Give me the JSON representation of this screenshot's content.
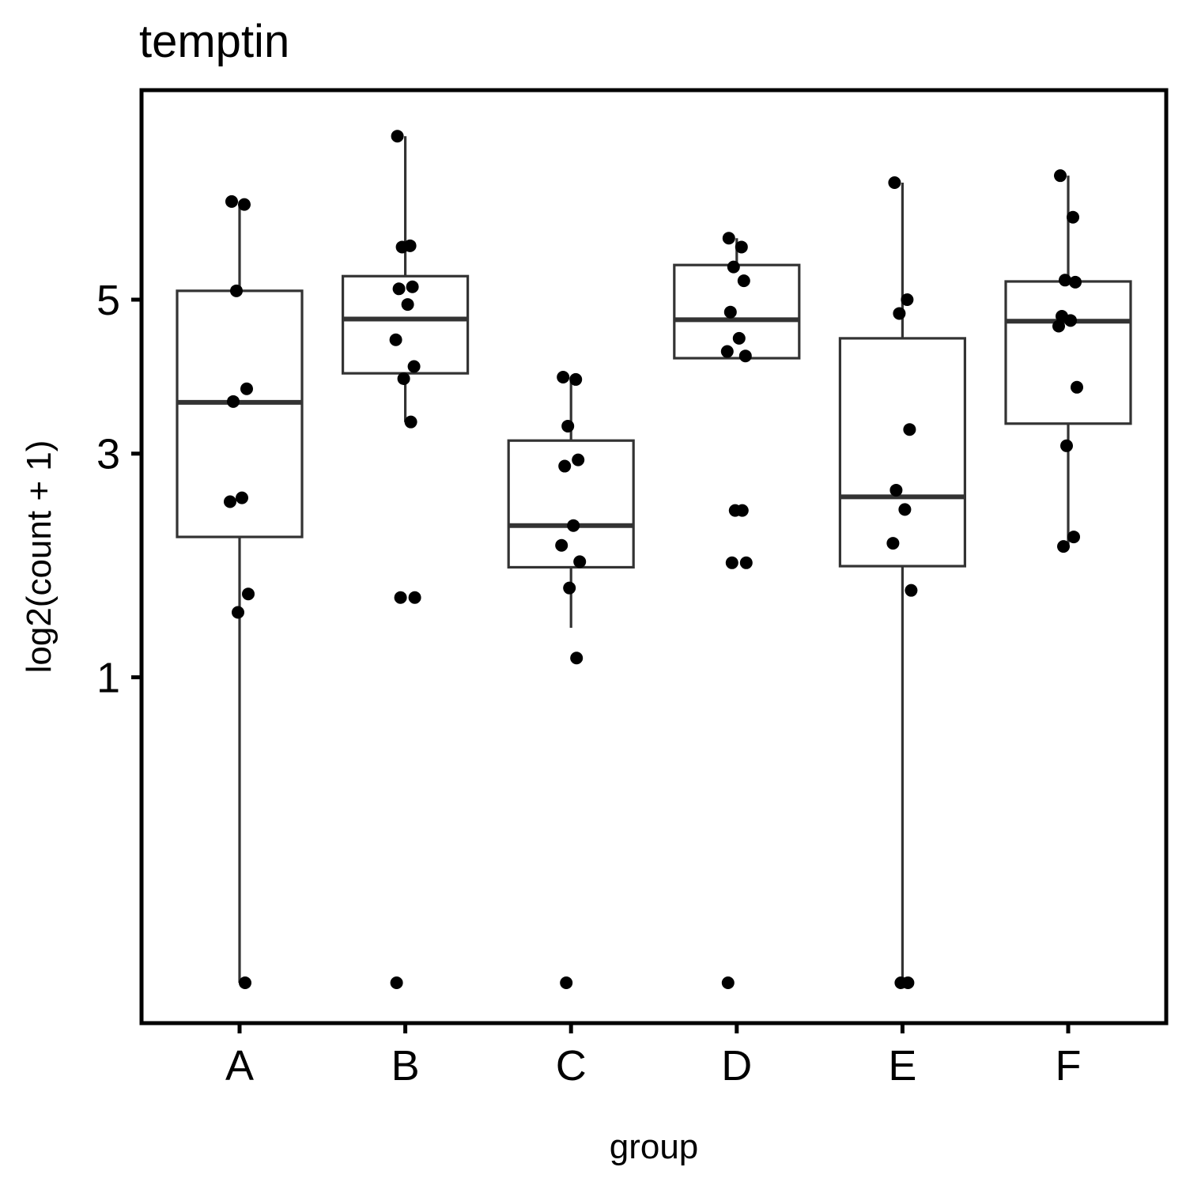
{
  "chart_data": {
    "type": "box",
    "title": "temptin",
    "xlabel": "group",
    "ylabel": "log2(count + 1)",
    "scale": "sqrt",
    "ylim": [
      0,
      8.2
    ],
    "y_ticks": [
      1,
      3,
      5
    ],
    "categories": [
      "A",
      "B",
      "C",
      "D",
      "E",
      "F"
    ],
    "boxes": [
      {
        "group": "A",
        "whisker_low": 0,
        "q1": 2.13,
        "median": 3.61,
        "q3": 5.13,
        "whisker_high": 6.54
      },
      {
        "group": "B",
        "whisker_low": 3.37,
        "q1": 3.98,
        "median": 4.72,
        "q3": 5.35,
        "whisker_high": 7.68
      },
      {
        "group": "C",
        "whisker_low": 1.35,
        "q1": 1.85,
        "median": 2.24,
        "q3": 3.15,
        "whisker_high": 3.93
      },
      {
        "group": "D",
        "whisker_low": 4.18,
        "q1": 4.18,
        "median": 4.71,
        "q3": 5.52,
        "whisker_high": 5.94
      },
      {
        "group": "E",
        "whisker_low": 0,
        "q1": 1.86,
        "median": 2.53,
        "q3": 4.45,
        "whisker_high": 6.86
      },
      {
        "group": "F",
        "whisker_low": 2.03,
        "q1": 3.35,
        "median": 4.69,
        "q3": 5.27,
        "whisker_high": 6.98
      }
    ],
    "points": {
      "A": [
        6.54,
        6.49,
        5.13,
        3.78,
        3.62,
        2.52,
        2.48,
        1.62,
        1.47,
        0
      ],
      "B": [
        7.68,
        5.82,
        5.8,
        5.19,
        5.16,
        4.93,
        4.43,
        4.07,
        3.91,
        3.37,
        1.59,
        1.59,
        0
      ],
      "C": [
        3.93,
        3.9,
        3.32,
        2.93,
        2.86,
        2.24,
        2.05,
        1.9,
        1.67,
        1.13,
        0
      ],
      "D": [
        5.94,
        5.8,
        5.49,
        5.28,
        4.82,
        4.45,
        4.27,
        4.21,
        2.39,
        2.39,
        1.89,
        1.89,
        0
      ],
      "E": [
        6.86,
        5.0,
        4.8,
        3.28,
        2.6,
        2.4,
        2.07,
        1.65,
        0,
        0
      ],
      "F": [
        6.98,
        6.28,
        5.29,
        5.26,
        4.76,
        4.7,
        4.62,
        3.8,
        3.09,
        2.13,
        2.04
      ]
    }
  }
}
